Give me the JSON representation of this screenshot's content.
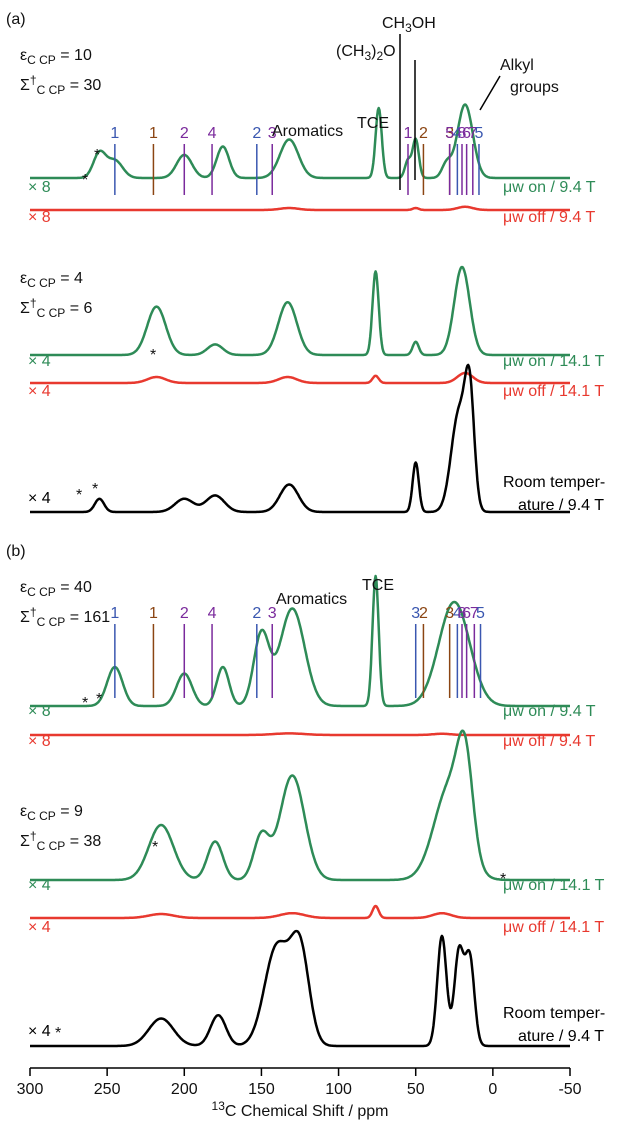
{
  "chart_data": {
    "type": "line",
    "xlabel": "13C Chemical Shift / ppm",
    "xlim": [
      300,
      -50
    ],
    "xticks": [
      300,
      250,
      200,
      150,
      100,
      50,
      0,
      -50
    ],
    "xtick_labels": [
      "300",
      "250",
      "200",
      "150",
      "100",
      "50",
      "0",
      "-50"
    ],
    "colors": {
      "on": "#2e8b57",
      "off": "#e8392f",
      "rt": "#000000",
      "blue": "#3a57b0",
      "brown": "#8b4513",
      "purple": "#7a2a9c"
    },
    "panels": [
      {
        "label": "(a)",
        "params": [
          {
            "sym": "ε",
            "sub": "C CP",
            "value": "10"
          },
          {
            "sym": "Σ",
            "sup": "†",
            "sub": "C CP",
            "value": "30"
          }
        ],
        "condition_labels": [
          {
            "scale": "× 8",
            "cond_prefix": "μw",
            "cond": "on / 9.4 T",
            "color": "#2e8b57"
          },
          {
            "scale": "× 8",
            "cond_prefix": "μw",
            "cond": "off / 9.4 T",
            "color": "#e8392f"
          },
          {
            "scale": "× 4",
            "cond_prefix": "μw",
            "cond": "on / 14.1 T",
            "color": "#2e8b57"
          },
          {
            "scale": "× 4",
            "cond_prefix": "μw",
            "cond": "off / 14.1 T",
            "color": "#e8392f"
          },
          {
            "scale": "× 4",
            "cond_prefix": "",
            "cond": "Room temperature / 9.4 T",
            "color": "#000000"
          }
        ],
        "params2": [
          {
            "sym": "ε",
            "sub": "C CP",
            "value": "4"
          },
          {
            "sym": "Σ",
            "sup": "†",
            "sub": "C CP",
            "value": "6"
          }
        ],
        "annotations": [
          "CH3OH",
          "(CH3)2O",
          "TCE",
          "Aromatics",
          "Alkyl groups"
        ],
        "peak_markers": [
          {
            "n": "1",
            "ppm": 245,
            "color": "blue"
          },
          {
            "n": "1",
            "ppm": 220,
            "color": "brown"
          },
          {
            "n": "2",
            "ppm": 200,
            "color": "purple"
          },
          {
            "n": "4",
            "ppm": 182,
            "color": "purple"
          },
          {
            "n": "2",
            "ppm": 153,
            "color": "blue"
          },
          {
            "n": "3",
            "ppm": 143,
            "color": "purple"
          },
          {
            "n": "1",
            "ppm": 55,
            "color": "purple"
          },
          {
            "n": "2",
            "ppm": 45,
            "color": "brown"
          },
          {
            "n": "3",
            "ppm": 28,
            "color": "brown"
          },
          {
            "n": "5",
            "ppm": 28,
            "color": "purple"
          },
          {
            "n": "4",
            "ppm": 23,
            "color": "blue"
          },
          {
            "n": "8",
            "ppm": 20,
            "color": "purple"
          },
          {
            "n": "6",
            "ppm": 17,
            "color": "purple"
          },
          {
            "n": "7",
            "ppm": 13,
            "color": "purple"
          },
          {
            "n": "5",
            "ppm": 9,
            "color": "blue"
          }
        ]
      },
      {
        "label": "(b)",
        "params": [
          {
            "sym": "ε",
            "sub": "C CP",
            "value": "40"
          },
          {
            "sym": "Σ",
            "sup": "†",
            "sub": "C CP",
            "value": "161"
          }
        ],
        "params2": [
          {
            "sym": "ε",
            "sub": "C CP",
            "value": "9"
          },
          {
            "sym": "Σ",
            "sup": "†",
            "sub": "C CP",
            "value": "38"
          }
        ],
        "annotations": [
          "Aromatics",
          "TCE"
        ],
        "peak_markers": [
          {
            "n": "1",
            "ppm": 245,
            "color": "blue"
          },
          {
            "n": "1",
            "ppm": 220,
            "color": "brown"
          },
          {
            "n": "2",
            "ppm": 200,
            "color": "purple"
          },
          {
            "n": "4",
            "ppm": 182,
            "color": "purple"
          },
          {
            "n": "2",
            "ppm": 153,
            "color": "blue"
          },
          {
            "n": "3",
            "ppm": 143,
            "color": "purple"
          },
          {
            "n": "3",
            "ppm": 50,
            "color": "blue"
          },
          {
            "n": "2",
            "ppm": 45,
            "color": "brown"
          },
          {
            "n": "3",
            "ppm": 28,
            "color": "brown"
          },
          {
            "n": "4",
            "ppm": 23,
            "color": "blue"
          },
          {
            "n": "8",
            "ppm": 20,
            "color": "purple"
          },
          {
            "n": "6",
            "ppm": 17,
            "color": "purple"
          },
          {
            "n": "7",
            "ppm": 12,
            "color": "purple"
          },
          {
            "n": "5",
            "ppm": 8,
            "color": "blue"
          }
        ]
      }
    ],
    "traces": [
      {
        "id": "a-on-94",
        "color": "on",
        "panel": "a",
        "peaks": [
          [
            255,
            0.35,
            4
          ],
          [
            245,
            0.25,
            5
          ],
          [
            200,
            0.33,
            5
          ],
          [
            175,
            0.45,
            4
          ],
          [
            132,
            0.55,
            6
          ],
          [
            74,
            1.0,
            2
          ],
          [
            55,
            0.25,
            2
          ],
          [
            50,
            0.55,
            2
          ],
          [
            30,
            0.2,
            3
          ],
          [
            18,
            1.05,
            5
          ]
        ]
      },
      {
        "id": "a-off-94",
        "color": "off",
        "panel": "a",
        "peaks": [
          [
            132,
            0.05,
            6
          ],
          [
            50,
            0.05,
            2
          ],
          [
            18,
            0.08,
            5
          ]
        ]
      },
      {
        "id": "a-on-141",
        "color": "on",
        "panel": "a",
        "peaks": [
          [
            218,
            0.55,
            6
          ],
          [
            180,
            0.12,
            5
          ],
          [
            133,
            0.6,
            6
          ],
          [
            76,
            0.95,
            2
          ],
          [
            50,
            0.15,
            2
          ],
          [
            20,
            1.0,
            5
          ]
        ]
      },
      {
        "id": "a-off-141",
        "color": "off",
        "panel": "a",
        "peaks": [
          [
            218,
            0.15,
            6
          ],
          [
            133,
            0.15,
            6
          ],
          [
            76,
            0.18,
            2
          ],
          [
            18,
            0.25,
            5
          ]
        ]
      },
      {
        "id": "a-rt",
        "color": "rt",
        "panel": "a",
        "peaks": [
          [
            255,
            0.12,
            3
          ],
          [
            200,
            0.12,
            6
          ],
          [
            180,
            0.15,
            6
          ],
          [
            132,
            0.25,
            6
          ],
          [
            50,
            0.45,
            2
          ],
          [
            22,
            0.9,
            5
          ],
          [
            15,
            0.95,
            3
          ]
        ]
      },
      {
        "id": "b-on-94",
        "color": "on",
        "panel": "b",
        "peaks": [
          [
            245,
            0.3,
            5
          ],
          [
            200,
            0.25,
            5
          ],
          [
            175,
            0.3,
            4
          ],
          [
            150,
            0.55,
            5
          ],
          [
            130,
            0.75,
            8
          ],
          [
            76,
            1.0,
            2
          ],
          [
            25,
            0.8,
            10
          ]
        ]
      },
      {
        "id": "b-off-94",
        "color": "off",
        "panel": "b",
        "peaks": [
          [
            132,
            0.04,
            10
          ],
          [
            33,
            0.03,
            6
          ]
        ]
      },
      {
        "id": "b-on-141",
        "color": "on",
        "panel": "b",
        "peaks": [
          [
            215,
            0.5,
            8
          ],
          [
            180,
            0.35,
            5
          ],
          [
            150,
            0.4,
            5
          ],
          [
            130,
            0.95,
            8
          ],
          [
            28,
            0.85,
            10
          ],
          [
            18,
            0.8,
            5
          ]
        ]
      },
      {
        "id": "b-off-141",
        "color": "off",
        "panel": "b",
        "peaks": [
          [
            215,
            0.1,
            8
          ],
          [
            130,
            0.12,
            8
          ],
          [
            76,
            0.3,
            2
          ],
          [
            33,
            0.12,
            6
          ]
        ]
      },
      {
        "id": "b-rt",
        "color": "rt",
        "panel": "b",
        "peaks": [
          [
            215,
            0.25,
            8
          ],
          [
            178,
            0.28,
            5
          ],
          [
            140,
            0.9,
            8
          ],
          [
            125,
            0.85,
            6
          ],
          [
            33,
            1.0,
            3
          ],
          [
            22,
            0.85,
            3
          ],
          [
            15,
            0.8,
            3
          ]
        ]
      }
    ]
  }
}
